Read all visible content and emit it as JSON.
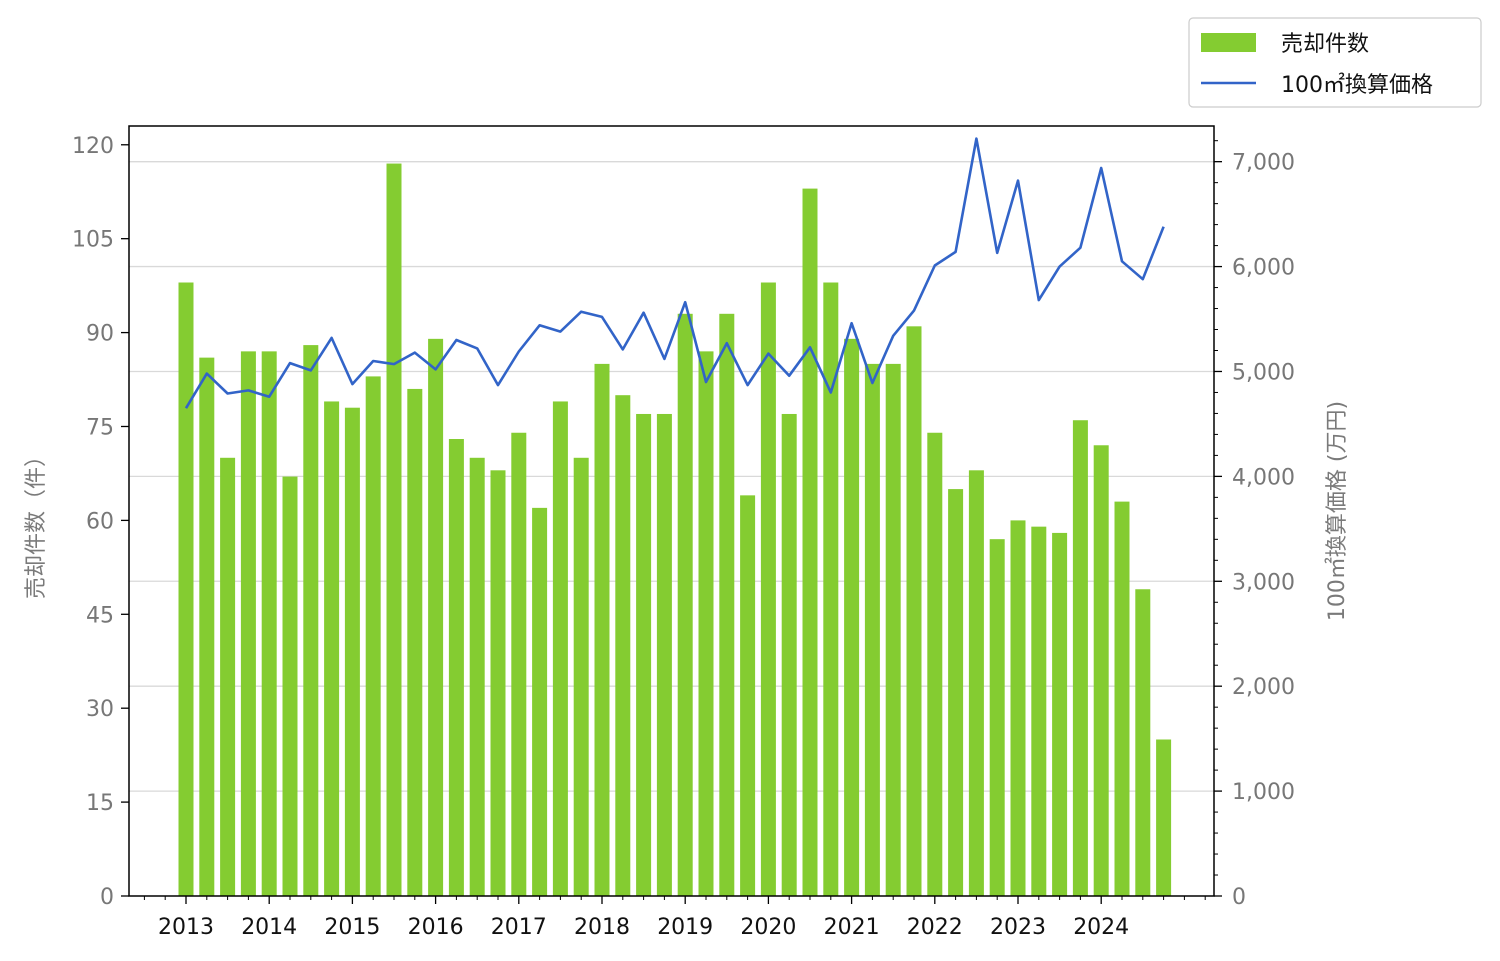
{
  "chart_data": {
    "type": "bar+line",
    "x_tick_labels": [
      "2013",
      "2014",
      "2015",
      "2016",
      "2017",
      "2018",
      "2019",
      "2020",
      "2021",
      "2022",
      "2023",
      "2024"
    ],
    "periods_per_year": 4,
    "left_axis": {
      "label": "売却件数（件）",
      "ylim": [
        0,
        123
      ],
      "ticks": [
        "0",
        "15",
        "30",
        "45",
        "60",
        "75",
        "90",
        "105",
        "120"
      ]
    },
    "right_axis": {
      "label": "100㎡換算価格 (万円)",
      "ylim": [
        0,
        7340
      ],
      "ticks": [
        "0",
        "1,000",
        "2,000",
        "3,000",
        "4,000",
        "5,000",
        "6,000",
        "7,000"
      ]
    },
    "series": [
      {
        "name": "売却件数",
        "kind": "bar",
        "axis": "left",
        "color": "#84cc31",
        "values": [
          98,
          86,
          70,
          87,
          87,
          67,
          88,
          79,
          78,
          83,
          117,
          81,
          89,
          73,
          70,
          68,
          74,
          62,
          79,
          70,
          85,
          80,
          77,
          77,
          93,
          87,
          93,
          64,
          98,
          77,
          113,
          98,
          89,
          85,
          85,
          91,
          74,
          65,
          68,
          57,
          60,
          59,
          58,
          76,
          72,
          63,
          49,
          25
        ]
      },
      {
        "name": "100㎡換算価格",
        "kind": "line",
        "axis": "right",
        "color": "#3264c8",
        "values": [
          4650,
          4980,
          4790,
          4820,
          4760,
          5080,
          5010,
          5320,
          4880,
          5100,
          5070,
          5180,
          5020,
          5300,
          5220,
          4870,
          5190,
          5440,
          5380,
          5570,
          5520,
          5210,
          5560,
          5120,
          5660,
          4900,
          5270,
          4870,
          5170,
          4960,
          5230,
          4800,
          5460,
          4890,
          5340,
          5580,
          6010,
          6140,
          7220,
          6130,
          6820,
          5680,
          6000,
          6180,
          6940,
          6050,
          5880,
          6380
        ]
      }
    ],
    "grid": "horizontal-right-axis",
    "legend_position": "top-right"
  }
}
